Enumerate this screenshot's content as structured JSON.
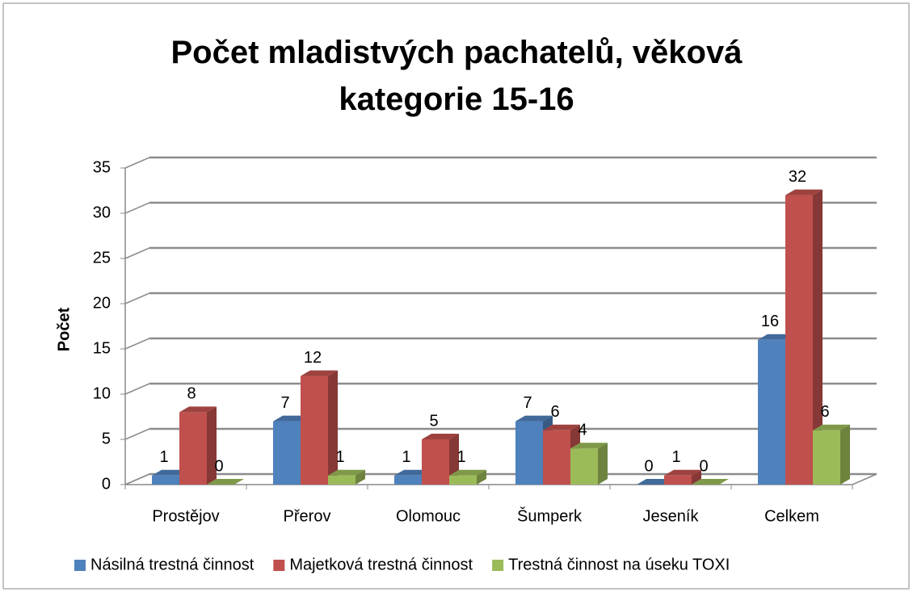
{
  "chart_data": {
    "type": "bar3d",
    "title": "Počet mladistvých pachatelů, věková kategorie 15-16",
    "y_label": "Počet",
    "categories": [
      "Prostějov",
      "Přerov",
      "Olomouc",
      "Šumperk",
      "Jeseník",
      "Celkem"
    ],
    "series": [
      {
        "name": "Násilná trestná činnost",
        "color": "#4f81bd",
        "values": [
          1,
          7,
          1,
          7,
          0,
          16
        ]
      },
      {
        "name": "Majetková trestná činnost",
        "color": "#c0504d",
        "values": [
          8,
          12,
          5,
          6,
          1,
          32
        ]
      },
      {
        "name": "Trestná činnost na úseku TOXI",
        "color": "#9bbb59",
        "values": [
          0,
          1,
          1,
          4,
          0,
          6
        ]
      }
    ],
    "ylim": [
      0,
      35
    ],
    "yticks": [
      0,
      5,
      10,
      15,
      20,
      25,
      30,
      35
    ],
    "grid": true,
    "legend": "bottom"
  }
}
